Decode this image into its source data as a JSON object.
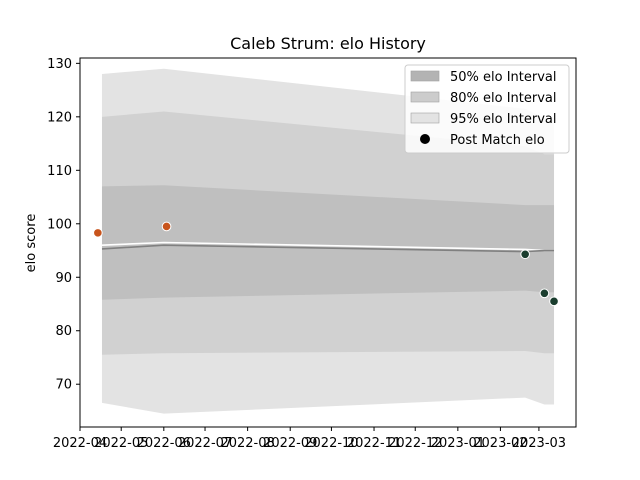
{
  "chart_data": {
    "type": "area",
    "title": "Caleb Strum: elo History",
    "xlabel": "",
    "ylabel": "elo score",
    "ylim": [
      62,
      131
    ],
    "xlim": [
      "2022-04-01",
      "2023-03-28"
    ],
    "x_ticks": [
      "2022-04",
      "2022-05",
      "2022-06",
      "2022-07",
      "2022-08",
      "2022-09",
      "2022-10",
      "2022-11",
      "2022-12",
      "2023-01",
      "2023-02",
      "2023-03"
    ],
    "y_ticks": [
      70,
      80,
      90,
      100,
      110,
      120,
      130
    ],
    "grid": false,
    "legend_position": "top-right",
    "legend": [
      {
        "label": "50% elo Interval",
        "kind": "patch",
        "color": "#b3b3b3"
      },
      {
        "label": "80% elo Interval",
        "kind": "patch",
        "color": "#cccccc"
      },
      {
        "label": "95% elo Interval",
        "kind": "patch",
        "color": "#e3e3e3"
      },
      {
        "label": "Post Match elo",
        "kind": "marker",
        "color": "#000000"
      }
    ],
    "band_dates": [
      "2022-04-17",
      "2022-06-01",
      "2023-02-19",
      "2023-03-05",
      "2023-03-12"
    ],
    "bands": [
      {
        "level": "95%",
        "color": "#e3e3e3",
        "upper": [
          128,
          129,
          121.5,
          119.8,
          119.8
        ],
        "lower": [
          66.5,
          64.5,
          67.5,
          66.2,
          66.2
        ]
      },
      {
        "level": "80%",
        "color": "#d1d1d1",
        "upper": [
          120,
          121,
          114.5,
          113,
          113
        ],
        "lower": [
          75.5,
          75.8,
          76.2,
          75.8,
          75.8
        ]
      },
      {
        "level": "50%",
        "color": "#bfbfbf",
        "upper": [
          107,
          107.2,
          103.5,
          103.5,
          103.5
        ],
        "lower": [
          85.8,
          86.2,
          87.5,
          87.2,
          87.2
        ]
      }
    ],
    "mean_line": {
      "color": "#ffffff",
      "values": [
        96,
        96.5,
        95.2,
        95,
        95
      ]
    },
    "median_line": {
      "color": "#808080",
      "values": [
        95.3,
        96,
        94.8,
        95,
        95
      ]
    },
    "points": [
      {
        "date": "2022-04-14",
        "elo": 98.3,
        "color": "#c8541c"
      },
      {
        "date": "2022-06-03",
        "elo": 99.5,
        "color": "#c8541c"
      },
      {
        "date": "2023-02-19",
        "elo": 94.3,
        "color": "#1a3d2e"
      },
      {
        "date": "2023-03-05",
        "elo": 87,
        "color": "#1a3d2e"
      },
      {
        "date": "2023-03-12",
        "elo": 85.5,
        "color": "#1a3d2e"
      }
    ]
  }
}
